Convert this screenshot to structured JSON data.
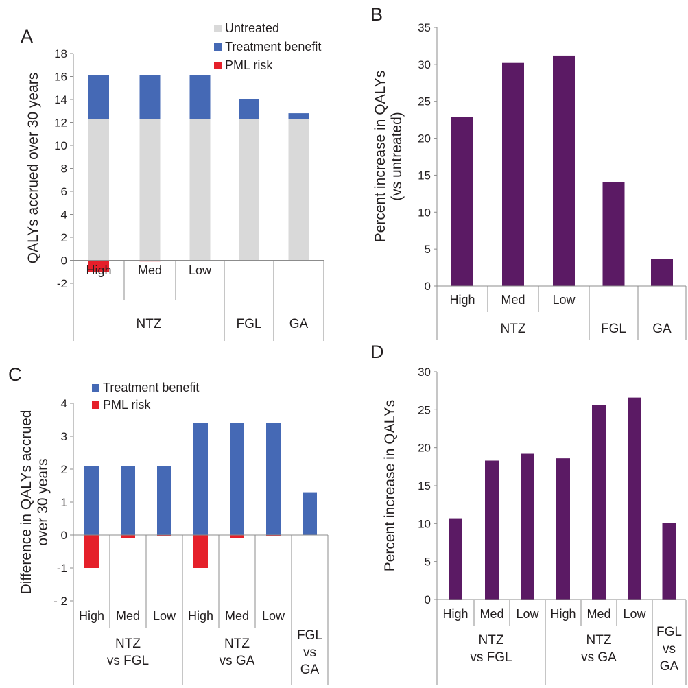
{
  "chart_data": [
    {
      "panel": "A",
      "type": "bar",
      "stacked": true,
      "ylabel": "QALYs accrued over 30 years",
      "ylim": [
        -2,
        18
      ],
      "yticks": [
        "-2",
        "0",
        "2",
        "4",
        "6",
        "8",
        "10",
        "12",
        "14",
        "16",
        "18"
      ],
      "categories": [
        "High",
        "Med",
        "Low",
        "",
        ""
      ],
      "groups": [
        {
          "label": "NTZ",
          "span": 3
        },
        {
          "label": "FGL",
          "span": 1
        },
        {
          "label": "GA",
          "span": 1
        }
      ],
      "legend": [
        "Untreated",
        "Treatment benefit",
        "PML risk"
      ],
      "legend_position": "top-right",
      "series": [
        {
          "name": "Untreated",
          "color": "#d9d9d9",
          "values": [
            12.3,
            12.3,
            12.3,
            12.3,
            12.3
          ]
        },
        {
          "name": "Treatment benefit",
          "color": "#4569b5",
          "values": [
            3.8,
            3.8,
            3.8,
            1.7,
            0.5
          ]
        },
        {
          "name": "PML risk",
          "color": "#e5202a",
          "values": [
            -1.0,
            -0.1,
            -0.05,
            0,
            0
          ]
        }
      ]
    },
    {
      "panel": "B",
      "type": "bar",
      "ylabel": "Percent increase in QALYs (vs untreated)",
      "ylim": [
        0,
        35
      ],
      "yticks": [
        "0",
        "5",
        "10",
        "15",
        "20",
        "25",
        "30",
        "35"
      ],
      "categories": [
        "High",
        "Med",
        "Low",
        "",
        ""
      ],
      "groups": [
        {
          "label": "NTZ",
          "span": 3
        },
        {
          "label": "FGL",
          "span": 1
        },
        {
          "label": "GA",
          "span": 1
        }
      ],
      "series": [
        {
          "color": "#5b1a64",
          "values": [
            22.9,
            30.2,
            31.2,
            14.1,
            3.7
          ]
        }
      ]
    },
    {
      "panel": "C",
      "type": "bar",
      "ylabel": "Difference in QALYs accrued over 30 years",
      "ylim": [
        -2,
        4
      ],
      "yticks": [
        "- 2",
        "-1",
        "0",
        "1",
        "2",
        "3",
        "4"
      ],
      "categories": [
        "High",
        "Med",
        "Low",
        "High",
        "Med",
        "Low",
        ""
      ],
      "groups": [
        {
          "label": "NTZ vs FGL",
          "span": 3
        },
        {
          "label": "NTZ vs GA",
          "span": 3
        },
        {
          "label": "FGL vs GA",
          "span": 1
        }
      ],
      "legend": [
        "Treatment benefit",
        "PML risk"
      ],
      "legend_position": "top-left",
      "series": [
        {
          "name": "Treatment benefit",
          "color": "#4569b5",
          "values": [
            2.1,
            2.1,
            2.1,
            3.4,
            3.4,
            3.4,
            1.3
          ]
        },
        {
          "name": "PML risk",
          "color": "#e5202a",
          "values": [
            -1.0,
            -0.1,
            -0.03,
            -1.0,
            -0.1,
            -0.03,
            0
          ]
        }
      ]
    },
    {
      "panel": "D",
      "type": "bar",
      "ylabel": "Percent increase in QALYs",
      "ylim": [
        0,
        30
      ],
      "yticks": [
        "0",
        "5",
        "10",
        "15",
        "20",
        "25",
        "30"
      ],
      "categories": [
        "High",
        "Med",
        "Low",
        "High",
        "Med",
        "Low",
        ""
      ],
      "groups": [
        {
          "label": "NTZ vs FGL",
          "span": 3
        },
        {
          "label": "NTZ vs GA",
          "span": 3
        },
        {
          "label": "FGL vs GA",
          "span": 1
        }
      ],
      "series": [
        {
          "color": "#5b1a64",
          "values": [
            10.7,
            18.3,
            19.2,
            18.6,
            25.6,
            26.6,
            10.1
          ]
        }
      ]
    }
  ]
}
